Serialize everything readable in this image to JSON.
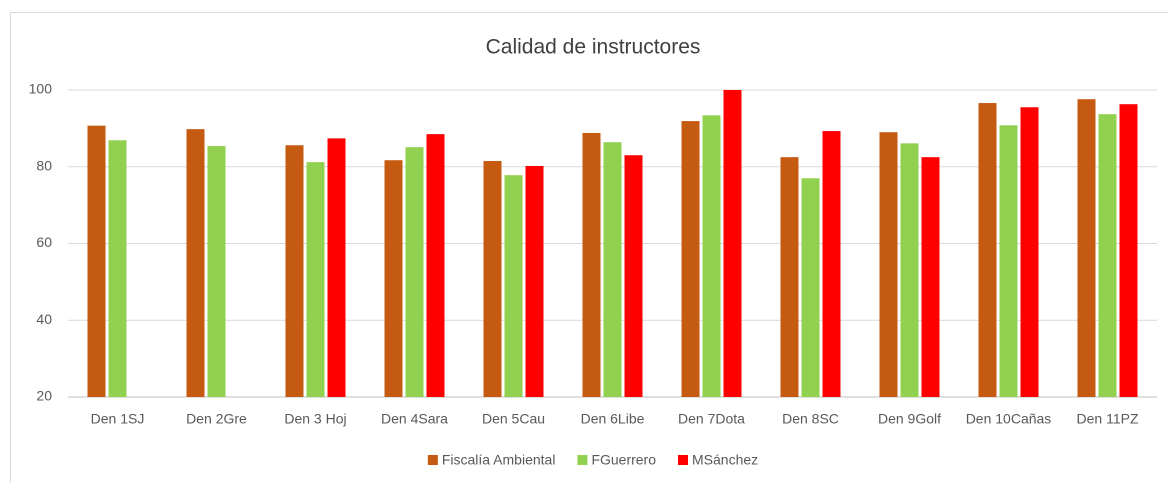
{
  "chart_data": {
    "type": "bar",
    "title": "Calidad de instructores",
    "categories": [
      "Den 1SJ",
      "Den 2Gre",
      "Den 3 Hoj",
      "Den 4Sara",
      "Den 5Cau",
      "Den 6Libe",
      "Den 7Dota",
      "Den 8SC",
      "Den 9Golf",
      "Den 10Cañas",
      "Den 11PZ"
    ],
    "series": [
      {
        "name": "Fiscalía Ambiental",
        "color": "#c55a11",
        "values": [
          90.7,
          89.8,
          85.6,
          81.7,
          81.5,
          88.8,
          91.9,
          82.5,
          89.0,
          96.6,
          97.6
        ]
      },
      {
        "name": "FGuerrero",
        "color": "#92d050",
        "values": [
          86.9,
          85.4,
          81.2,
          85.1,
          77.8,
          86.4,
          93.4,
          77.0,
          86.1,
          90.8,
          93.7
        ]
      },
      {
        "name": "MSánchez",
        "color": "#ff0000",
        "values": [
          null,
          null,
          87.4,
          88.5,
          80.2,
          83.0,
          100,
          89.3,
          82.5,
          95.5,
          96.3
        ]
      }
    ],
    "ylim": [
      20,
      100
    ],
    "yticks": [
      20,
      40,
      60,
      80,
      100
    ],
    "grid": true,
    "legend": "bottom"
  }
}
